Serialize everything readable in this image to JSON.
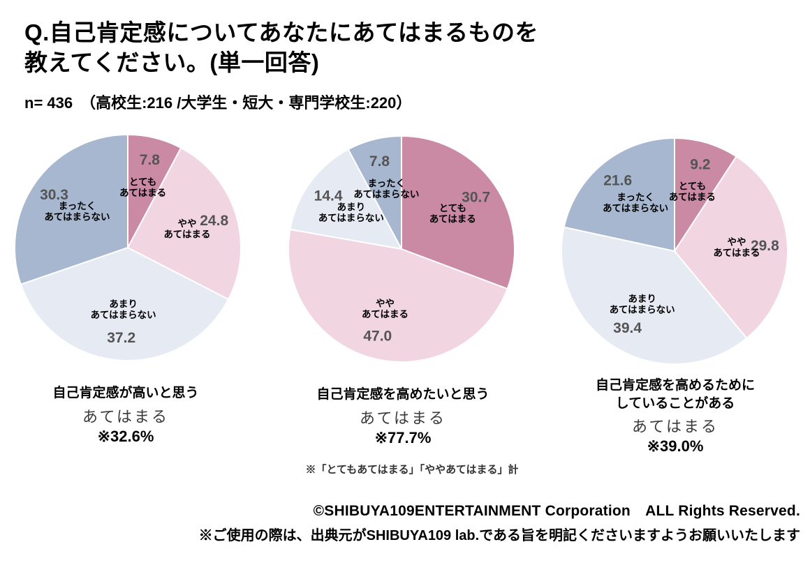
{
  "page": {
    "title": "Q.自己肯定感についてあなたにあてはまるものを\n教えてください。(単一回答)",
    "sample_size": "n= 436　（高校生:216 /大学生・短大・専門学校生:220）",
    "footnote": "※「とてもあてはまる」「ややあてはまる」計",
    "copyright": "©SHIBUYA109ENTERTAINMENT Corporation　ALL Rights Reserved.",
    "usage_notice": "※ご使用の際は、出典元がSHIBUYA109 lab.である旨を明記くださいますようお願いいたします"
  },
  "palette": {
    "totemo_atehamaru": "#cb8aa3",
    "yaya_atehamaru": "#f1d5e0",
    "amari_atehamaranai": "#e6eaf2",
    "mattaku_atehamaranai": "#a7b7d0",
    "value_label_text": "#545454",
    "category_label_text": "#000000",
    "slice_border": "#ffffff"
  },
  "chart_data": [
    {
      "type": "pie",
      "title": "自己肯定感が高いと思う",
      "summary_label": "あてはまる",
      "summary_value": "※32.6%",
      "categories": [
        "とてもあてはまる",
        "ややあてはまる",
        "あまりあてはまらない",
        "まったくあてはまらない"
      ],
      "category_display": [
        "とても\nあてはまる",
        "やや\nあてはまる",
        "あまり\nあてはまらない",
        "まったく\nあてはまらない"
      ],
      "values": [
        7.8,
        24.8,
        37.2,
        30.3
      ],
      "value_labels": [
        "7.8",
        "24.8",
        "37.2",
        "30.3"
      ],
      "colors": [
        "#cb8aa3",
        "#f1d5e0",
        "#e6eaf2",
        "#a7b7d0"
      ],
      "start_angle_deg": 0,
      "direction": "clockwise"
    },
    {
      "type": "pie",
      "title": "自己肯定感を高めたいと思う",
      "summary_label": "あてはまる",
      "summary_value": "※77.7%",
      "categories": [
        "とてもあてはまる",
        "ややあてはまる",
        "あまりあてはまらない",
        "まったくあてはまらない"
      ],
      "category_display": [
        "とても\nあてはまる",
        "やや\nあてはまる",
        "あまり\nあてはまらない",
        "まったく\nあてはまらない"
      ],
      "values": [
        30.7,
        47.0,
        14.4,
        7.8
      ],
      "value_labels": [
        "30.7",
        "47.0",
        "14.4",
        "7.8"
      ],
      "colors": [
        "#cb8aa3",
        "#f1d5e0",
        "#e6eaf2",
        "#a7b7d0"
      ],
      "start_angle_deg": 0,
      "direction": "clockwise"
    },
    {
      "type": "pie",
      "title": "自己肯定感を高めるために\nしていることがある",
      "summary_label": "あてはまる",
      "summary_value": "※39.0%",
      "categories": [
        "とてもあてはまる",
        "ややあてはまる",
        "あまりあてはまらない",
        "まったくあてはまらない"
      ],
      "category_display": [
        "とても\nあてはまる",
        "やや\nあてはまる",
        "あまり\nあてはまらない",
        "まったく\nあてはまらない"
      ],
      "values": [
        9.2,
        29.8,
        39.4,
        21.6
      ],
      "value_labels": [
        "9.2",
        "29.8",
        "39.4",
        "21.6"
      ],
      "colors": [
        "#cb8aa3",
        "#f1d5e0",
        "#e6eaf2",
        "#a7b7d0"
      ],
      "start_angle_deg": 0,
      "direction": "clockwise"
    }
  ]
}
